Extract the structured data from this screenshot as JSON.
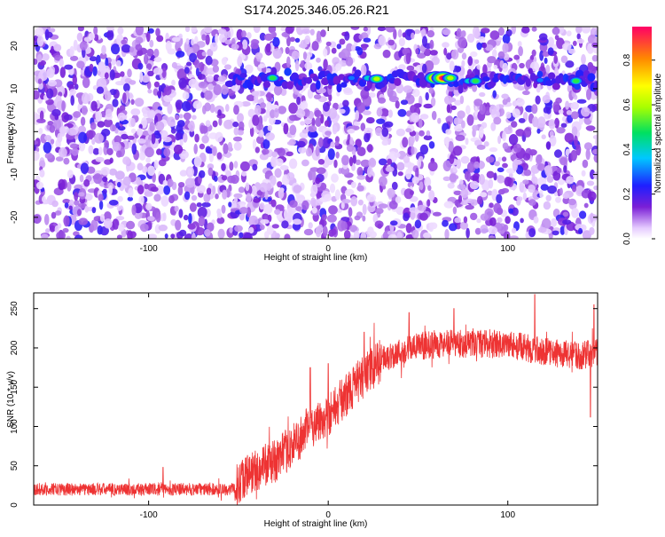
{
  "title": "S174.2025.346.05.26.R21",
  "chart_data": [
    {
      "type": "heatmap",
      "xlabel": "Height of straight line (km)",
      "ylabel": "Frequency (Hz)",
      "xlim": [
        -164,
        150
      ],
      "ylim": [
        -25,
        24.5
      ],
      "xticks": [
        -100,
        0,
        100
      ],
      "yticks": [
        -20,
        -10,
        0,
        10,
        20
      ],
      "colorbar": {
        "label": "Normalized spectral amplitude",
        "range": [
          0,
          0.95
        ],
        "ticks": [
          0.0,
          0.2,
          0.4,
          0.6,
          0.8
        ]
      },
      "signal_band_hz": 12,
      "signal_band_start_km": -55,
      "signal_peaks": [
        {
          "x": -31,
          "y": 12.5,
          "amp": 0.55
        },
        {
          "x": 13,
          "y": 12.5,
          "amp": 0.3
        },
        {
          "x": 22,
          "y": 12.5,
          "amp": 0.45
        },
        {
          "x": 27,
          "y": 12.3,
          "amp": 0.6
        },
        {
          "x": 60,
          "y": 12.5,
          "amp": 0.95
        },
        {
          "x": 64,
          "y": 12.5,
          "amp": 0.95
        },
        {
          "x": 68,
          "y": 12.5,
          "amp": 0.7
        },
        {
          "x": 78,
          "y": 11.8,
          "amp": 0.45
        },
        {
          "x": 82,
          "y": 11.8,
          "amp": 0.5
        },
        {
          "x": 118,
          "y": 12,
          "amp": 0.3
        },
        {
          "x": 138,
          "y": 11.8,
          "amp": 0.5
        }
      ],
      "gaps_km": [
        [
          60,
          65
        ],
        [
          25,
          28
        ]
      ]
    },
    {
      "type": "line",
      "xlabel": "Height of straight line (km)",
      "ylabel": "SNR (10 * v/v)",
      "xlim": [
        -164,
        150
      ],
      "ylim": [
        0,
        270
      ],
      "xticks": [
        -100,
        0,
        100
      ],
      "yticks": [
        0,
        50,
        100,
        150,
        200,
        250
      ],
      "color": "#ee3333",
      "trend": {
        "x": [
          -164,
          -52,
          -48,
          -40,
          -30,
          -20,
          -10,
          0,
          10,
          20,
          30,
          40,
          45,
          60,
          80,
          100,
          120,
          140,
          150
        ],
        "y": [
          20,
          20,
          35,
          45,
          55,
          75,
          100,
          115,
          140,
          165,
          185,
          195,
          200,
          205,
          205,
          205,
          195,
          190,
          195
        ]
      },
      "spikes": [
        {
          "x": -10,
          "y": 175
        },
        {
          "x": 0,
          "y": 180
        },
        {
          "x": 20,
          "y": 220
        },
        {
          "x": 45,
          "y": 245
        },
        {
          "x": 70,
          "y": 250
        },
        {
          "x": 115,
          "y": 268
        },
        {
          "x": 146,
          "y": 112
        },
        {
          "x": 148,
          "y": 255
        },
        {
          "x": -92,
          "y": 48
        }
      ]
    }
  ]
}
